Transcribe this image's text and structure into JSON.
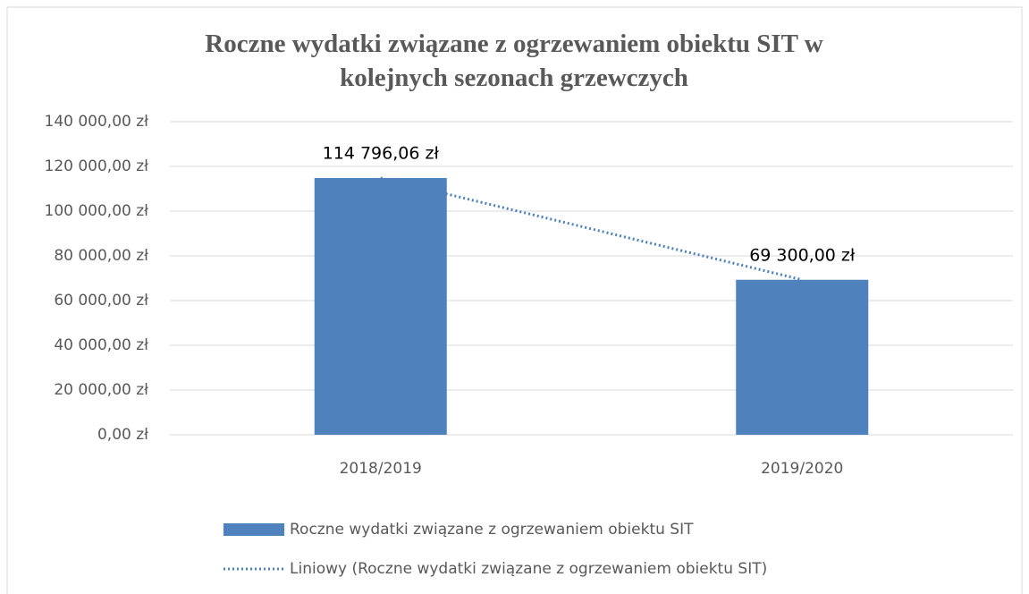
{
  "chart_data": {
    "type": "bar",
    "title": "Roczne wydatki związane z ogrzewaniem obiektu SIT w kolejnych sezonach grzewczych",
    "categories": [
      "2018/2019",
      "2019/2020"
    ],
    "series": [
      {
        "name": "Roczne wydatki związane z ogrzewaniem obiektu SIT",
        "color": "#4f81bd",
        "values": [
          114796.06,
          69300
        ],
        "value_labels": [
          "114 796,06 zł",
          "69 300,00 zł"
        ]
      }
    ],
    "trendline": {
      "name": "Liniowy (Roczne wydatki związane z ogrzewaniem obiektu SIT)",
      "type": "linear",
      "color": "#4f81bd"
    },
    "ylim": [
      0,
      140000
    ],
    "yticks": [
      {
        "value": 0,
        "label": "0,00 zł"
      },
      {
        "value": 20000,
        "label": "20 000,00 zł"
      },
      {
        "value": 40000,
        "label": "40 000,00 zł"
      },
      {
        "value": 60000,
        "label": "60 000,00 zł"
      },
      {
        "value": 80000,
        "label": "80 000,00 zł"
      },
      {
        "value": 100000,
        "label": "100 000,00 zł"
      },
      {
        "value": 120000,
        "label": "120 000,00 zł"
      },
      {
        "value": 140000,
        "label": "140 000,00 zł"
      }
    ],
    "grid": true,
    "legend": "bottom"
  }
}
